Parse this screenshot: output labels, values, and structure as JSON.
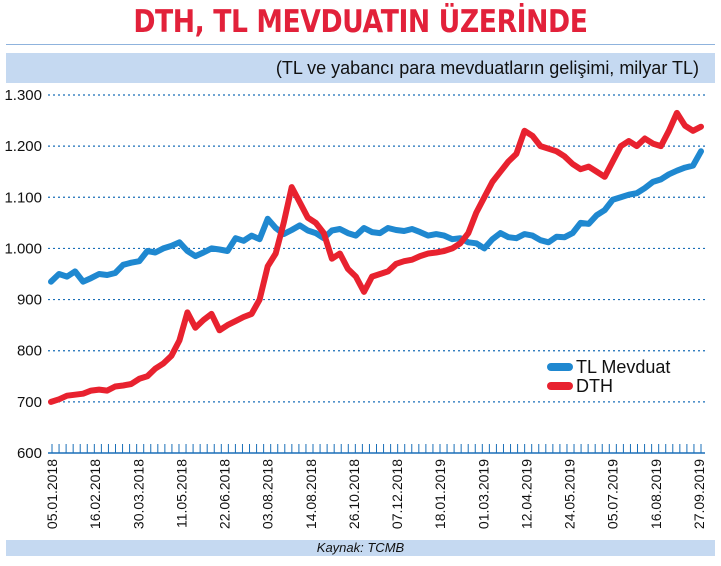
{
  "title": "DTH, TL MEVDUATIN ÜZERİNDE",
  "subtitle": "(TL ve yabancı para mevduatların gelişimi, milyar TL)",
  "source": "Kaynak: TCMB",
  "colors": {
    "title": "#e2213a",
    "band": "#c5d9f1",
    "tl": "#1f88d0",
    "dth": "#e8222f",
    "grid": "#1a6fb8"
  },
  "chart_data": {
    "type": "line",
    "title": "DTH, TL MEVDUATIN ÜZERİNDE",
    "subtitle": "(TL ve yabancı para mevduatların gelişimi, milyar TL)",
    "xlabel": "",
    "ylabel": "",
    "ylim": [
      600,
      1300
    ],
    "yticks": [
      600,
      700,
      800,
      900,
      "1.000",
      "1.100",
      "1.200",
      "1.300"
    ],
    "ytick_values": [
      600,
      700,
      800,
      900,
      1000,
      1100,
      1200,
      1300
    ],
    "xticks": [
      "05.01.2018",
      "16.02.2018",
      "30.03.2018",
      "11.05.2018",
      "22.06.2018",
      "03.08.2018",
      "14.08.2018",
      "26.10.2018",
      "07.12.2018",
      "18.01.2019",
      "01.03.2019",
      "12.04.2019",
      "24.05.2019",
      "05.07.2019",
      "16.08.2019",
      "27.09.2019"
    ],
    "grid": "horizontal dotted",
    "legend": "right",
    "series": [
      {
        "name": "TL Mevduat",
        "color": "#1f88d0",
        "values": [
          935,
          950,
          945,
          955,
          935,
          942,
          950,
          948,
          952,
          968,
          972,
          975,
          995,
          992,
          1000,
          1005,
          1012,
          995,
          985,
          992,
          1000,
          998,
          995,
          1020,
          1015,
          1025,
          1018,
          1058,
          1040,
          1028,
          1036,
          1045,
          1035,
          1030,
          1020,
          1035,
          1038,
          1030,
          1025,
          1040,
          1032,
          1030,
          1040,
          1036,
          1034,
          1038,
          1032,
          1025,
          1028,
          1025,
          1018,
          1020,
          1012,
          1010,
          1000,
          1018,
          1030,
          1022,
          1020,
          1028,
          1025,
          1016,
          1012,
          1023,
          1022,
          1030,
          1050,
          1048,
          1065,
          1075,
          1095,
          1100,
          1105,
          1108,
          1118,
          1130,
          1135,
          1145,
          1152,
          1158,
          1162,
          1190
        ]
      },
      {
        "name": "DTH",
        "color": "#e8222f",
        "values": [
          700,
          705,
          712,
          714,
          716,
          722,
          724,
          722,
          730,
          732,
          735,
          745,
          750,
          765,
          775,
          790,
          820,
          875,
          845,
          860,
          872,
          840,
          850,
          858,
          866,
          872,
          900,
          965,
          990,
          1050,
          1120,
          1090,
          1060,
          1050,
          1030,
          980,
          990,
          960,
          945,
          915,
          945,
          950,
          955,
          970,
          975,
          978,
          985,
          990,
          992,
          995,
          1000,
          1010,
          1030,
          1070,
          1100,
          1130,
          1150,
          1170,
          1185,
          1230,
          1220,
          1200,
          1195,
          1190,
          1180,
          1165,
          1155,
          1160,
          1150,
          1140,
          1170,
          1200,
          1210,
          1200,
          1215,
          1205,
          1200,
          1230,
          1265,
          1240,
          1230,
          1238
        ]
      }
    ]
  }
}
